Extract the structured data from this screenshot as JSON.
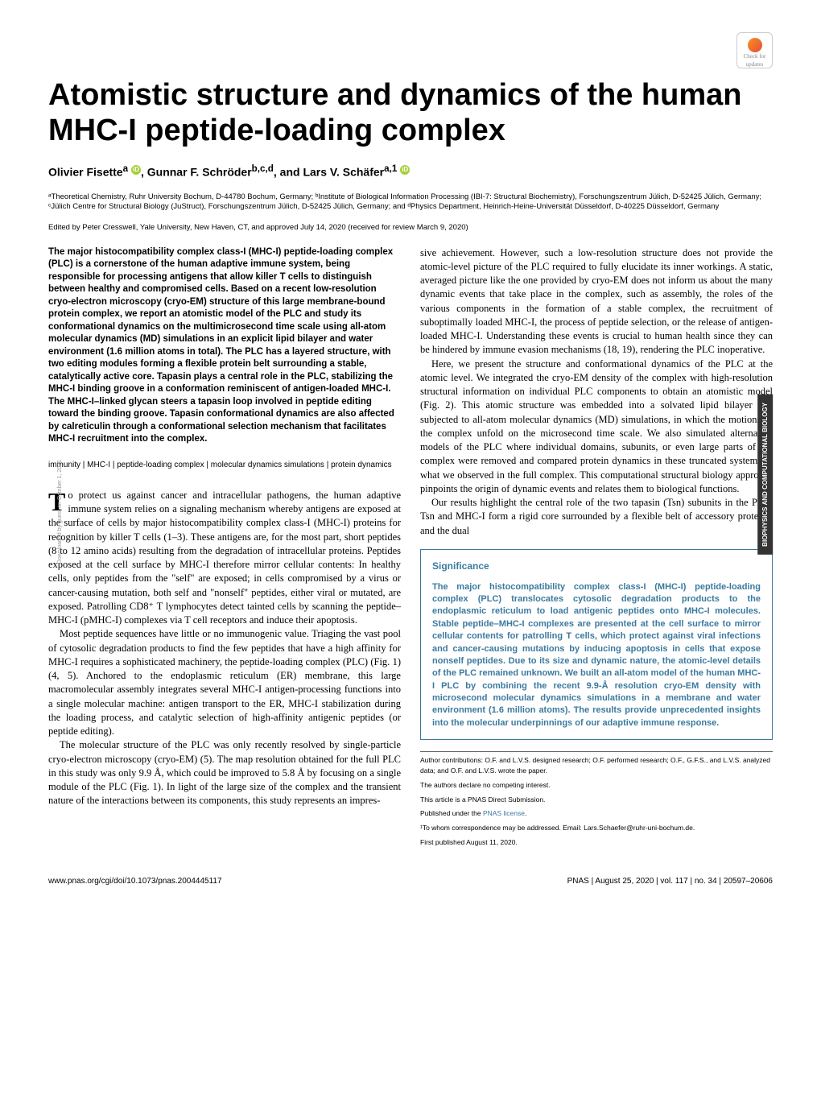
{
  "check_updates": "Check for updates",
  "title": "Atomistic structure and dynamics of the human MHC-I peptide-loading complex",
  "authors_html": "Olivier Fisetteᵃ ⓘ, Gunnar F. Schröderᵇ·ᶜ·ᵈ, and Lars V. Schäferᵃ·¹ ⓘ",
  "author_a": "Olivier Fisette",
  "author_a_sup": "a",
  "author_b": "Gunnar F. Schröder",
  "author_b_sup": "b,c,d",
  "author_c": "Lars V. Schäfer",
  "author_c_sup": "a,1",
  "affiliations": "ᵃTheoretical Chemistry, Ruhr University Bochum, D-44780 Bochum, Germany; ᵇInstitute of Biological Information Processing (IBI-7: Structural Biochemistry), Forschungszentrum Jülich, D-52425 Jülich, Germany; ᶜJülich Centre for Structural Biology (JuStruct), Forschungszentrum Jülich, D-52425 Jülich, Germany; and ᵈPhysics Department, Heinrich-Heine-Universität Düsseldorf, D-40225 Düsseldorf, Germany",
  "edited": "Edited by Peter Cresswell, Yale University, New Haven, CT, and approved July 14, 2020 (received for review March 9, 2020)",
  "abstract": "The major histocompatibility complex class-I (MHC-I) peptide-loading complex (PLC) is a cornerstone of the human adaptive immune system, being responsible for processing antigens that allow killer T cells to distinguish between healthy and compromised cells. Based on a recent low-resolution cryo-electron microscopy (cryo-EM) structure of this large membrane-bound protein complex, we report an atomistic model of the PLC and study its conformational dynamics on the multimicrosecond time scale using all-atom molecular dynamics (MD) simulations in an explicit lipid bilayer and water environment (1.6 million atoms in total). The PLC has a layered structure, with two editing modules forming a flexible protein belt surrounding a stable, catalytically active core. Tapasin plays a central role in the PLC, stabilizing the MHC-I binding groove in a conformation reminiscent of antigen-loaded MHC-I. The MHC-I–linked glycan steers a tapasin loop involved in peptide editing toward the binding groove. Tapasin conformational dynamics are also affected by calreticulin through a conformational selection mechanism that facilitates MHC-I recruitment into the complex.",
  "keywords": "immunity | MHC-I | peptide-loading complex | molecular dynamics simulations | protein dynamics",
  "body": {
    "p1": "To protect us against cancer and intracellular pathogens, the human adaptive immune system relies on a signaling mechanism whereby antigens are exposed at the surface of cells by major histocompatibility complex class-I (MHC-I) proteins for recognition by killer T cells (1–3). These antigens are, for the most part, short peptides (8 to 12 amino acids) resulting from the degradation of intracellular proteins. Peptides exposed at the cell surface by MHC-I therefore mirror cellular contents: In healthy cells, only peptides from the \"self\" are exposed; in cells compromised by a virus or cancer-causing mutation, both self and \"nonself\" peptides, either viral or mutated, are exposed. Patrolling CD8⁺ T lymphocytes detect tainted cells by scanning the peptide–MHC-I (pMHC-I) complexes via T cell receptors and induce their apoptosis.",
    "p2": "Most peptide sequences have little or no immunogenic value. Triaging the vast pool of cytosolic degradation products to find the few peptides that have a high affinity for MHC-I requires a sophisticated machinery, the peptide-loading complex (PLC) (Fig. 1) (4, 5). Anchored to the endoplasmic reticulum (ER) membrane, this large macromolecular assembly integrates several MHC-I antigen-processing functions into a single molecular machine: antigen transport to the ER, MHC-I stabilization during the loading process, and catalytic selection of high-affinity antigenic peptides (or peptide editing).",
    "p3": "The molecular structure of the PLC was only recently resolved by single-particle cryo-electron microscopy (cryo-EM) (5). The map resolution obtained for the full PLC in this study was only 9.9 Å, which could be improved to 5.8 Å by focusing on a single module of the PLC (Fig. 1). In light of the large size of the complex and the transient nature of the interactions between its components, this study represents an impres-",
    "p4": "sive achievement. However, such a low-resolution structure does not provide the atomic-level picture of the PLC required to fully elucidate its inner workings. A static, averaged picture like the one provided by cryo-EM does not inform us about the many dynamic events that take place in the complex, such as assembly, the roles of the various components in the formation of a stable complex, the recruitment of suboptimally loaded MHC-I, the process of peptide selection, or the release of antigen-loaded MHC-I. Understanding these events is crucial to human health since they can be hindered by immune evasion mechanisms (18, 19), rendering the PLC inoperative.",
    "p5": "Here, we present the structure and conformational dynamics of the PLC at the atomic level. We integrated the cryo-EM density of the complex with high-resolution structural information on individual PLC components to obtain an atomistic model (Fig. 2). This atomic structure was embedded into a solvated lipid bilayer and subjected to all-atom molecular dynamics (MD) simulations, in which the motions of the complex unfold on the microsecond time scale. We also simulated alternative models of the PLC where individual domains, subunits, or even large parts of the complex were removed and compared protein dynamics in these truncated systems to what we observed in the full complex. This computational structural biology approach pinpoints the origin of dynamic events and relates them to biological functions.",
    "p6": "Our results highlight the central role of the two tapasin (Tsn) subunits in the PLC. Tsn and MHC-I form a rigid core surrounded by a flexible belt of accessory proteins, and the dual"
  },
  "significance": {
    "title": "Significance",
    "text": "The major histocompatibility complex class-I (MHC-I) peptide-loading complex (PLC) translocates cytosolic degradation products to the endoplasmic reticulum to load antigenic peptides onto MHC-I molecules. Stable peptide–MHC-I complexes are presented at the cell surface to mirror cellular contents for patrolling T cells, which protect against viral infections and cancer-causing mutations by inducing apoptosis in cells that expose nonself peptides. Due to its size and dynamic nature, the atomic-level details of the PLC remained unknown. We built an all-atom model of the human MHC-I PLC by combining the recent 9.9-Å resolution cryo-EM density with microsecond molecular dynamics simulations in a membrane and water environment (1.6 million atoms). The results provide unprecedented insights into the molecular underpinnings of our adaptive immune response."
  },
  "metadata": {
    "contributions": "Author contributions: O.F. and L.V.S. designed research; O.F. performed research; O.F., G.F.S., and L.V.S. analyzed data; and O.F. and L.V.S. wrote the paper.",
    "competing": "The authors declare no competing interest.",
    "submission": "This article is a PNAS Direct Submission.",
    "license_prefix": "Published under the ",
    "license_link": "PNAS license",
    "license_suffix": ".",
    "correspondence": "¹To whom correspondence may be addressed. Email: Lars.Schaefer@ruhr-uni-bochum.de.",
    "published": "First published August 11, 2020."
  },
  "footer": {
    "doi": "www.pnas.org/cgi/doi/10.1073/pnas.2004445117",
    "citation": "PNAS | August 25, 2020 | vol. 117 | no. 34 | 20597–20606"
  },
  "side_tab": "BIOPHYSICS AND COMPUTATIONAL BIOLOGY",
  "side_download": "Downloaded by guest on October 1, 2021"
}
